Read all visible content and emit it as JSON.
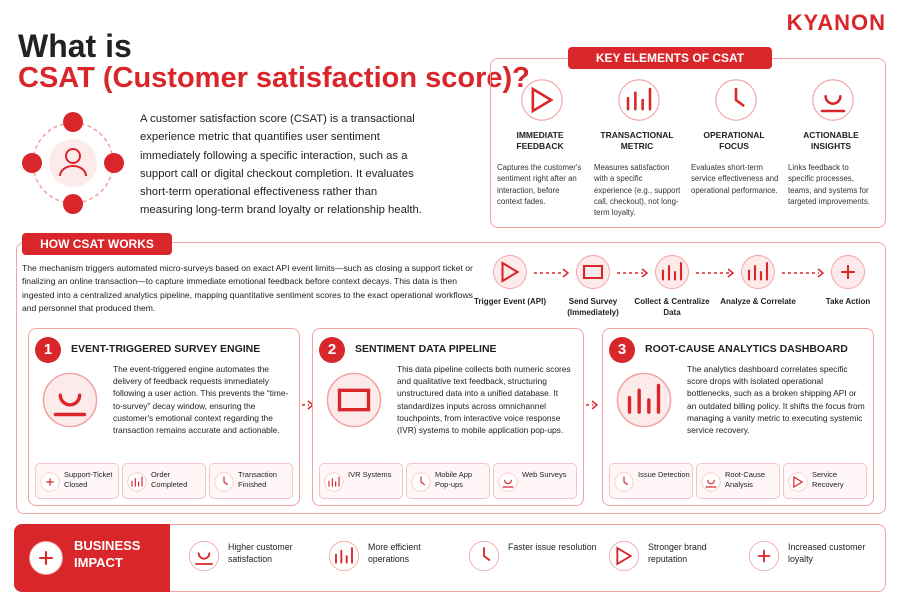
{
  "brand": "KYANON",
  "title": {
    "line1": "What is",
    "line2": "CSAT (Customer satisfaction score)?"
  },
  "intro": "A customer satisfaction score (CSAT) is a transactional experience metric that quantifies user sentiment immediately following a specific interaction, such as a support call or digital checkout completion. It evaluates short-term operational effectiveness rather than measuring long-term brand loyalty or relationship health.",
  "key_elements": {
    "heading": "KEY ELEMENTS OF CSAT",
    "items": [
      {
        "title": "IMMEDIATE FEEDBACK",
        "text": "Captures the customer's sentiment right after an interaction, before context fades."
      },
      {
        "title": "TRANSACTIONAL METRIC",
        "text": "Measures satisfaction with a specific experience (e.g., support call, checkout), not long-term loyalty."
      },
      {
        "title": "OPERATIONAL FOCUS",
        "text": "Evaluates short-term service effectiveness and operational performance."
      },
      {
        "title": "ACTIONABLE INSIGHTS",
        "text": "Links feedback to specific processes, teams, and systems for targeted improvements."
      }
    ]
  },
  "how_it_works": {
    "heading": "HOW CSAT WORKS",
    "text": "The mechanism triggers automated micro-surveys based on exact API event limits—such as closing a support ticket or finalizing an online transaction—to capture immediate emotional feedback before context decays. This data is then ingested into a centralized analytics pipeline, mapping quantitative sentiment scores to the exact operational workflows and personnel that produced them.",
    "flow": [
      "Trigger Event (API)",
      "Send Survey (Immediately)",
      "Collect & Centralize Data",
      "Analyze & Correlate",
      "Take Action"
    ]
  },
  "steps": [
    {
      "number": 1,
      "title": "EVENT-TRIGGERED SURVEY ENGINE",
      "text": "The event-triggered engine automates the delivery of feedback requests immediately following a user action. This prevents the “time-to-survey” decay window, ensuring the customer's emotional context regarding the transaction remains accurate and actionable.",
      "tags": [
        "Support-Ticket Closed",
        "Order Completed",
        "Transaction Finished"
      ]
    },
    {
      "number": 2,
      "title": "SENTIMENT DATA PIPELINE",
      "text": "This data pipeline collects both numeric scores and qualitative text feedback, structuring unstructured data into a unified database. It standardizes inputs across omnichannel touchpoints, from interactive voice response (IVR) systems to mobile application pop-ups.",
      "tags": [
        "IVR Systems",
        "Mobile App Pop-ups",
        "Web Surveys"
      ]
    },
    {
      "number": 3,
      "title": "ROOT-CAUSE ANALYTICS DASHBOARD",
      "text": "The analytics dashboard correlates specific score drops with isolated operational bottlenecks, such as a broken shipping API or an outdated billing policy. It shifts the focus from managing a vanity metric to executing systemic service recovery.",
      "tags": [
        "Issue Detection",
        "Root-Cause Analysis",
        "Service Recovery"
      ]
    }
  ],
  "impact": {
    "heading": "BUSINESS IMPACT",
    "items": [
      "Higher customer satisfaction",
      "More efficient operations",
      "Faster issue resolution",
      "Stronger brand reputation",
      "Increased customer loyalty"
    ]
  }
}
